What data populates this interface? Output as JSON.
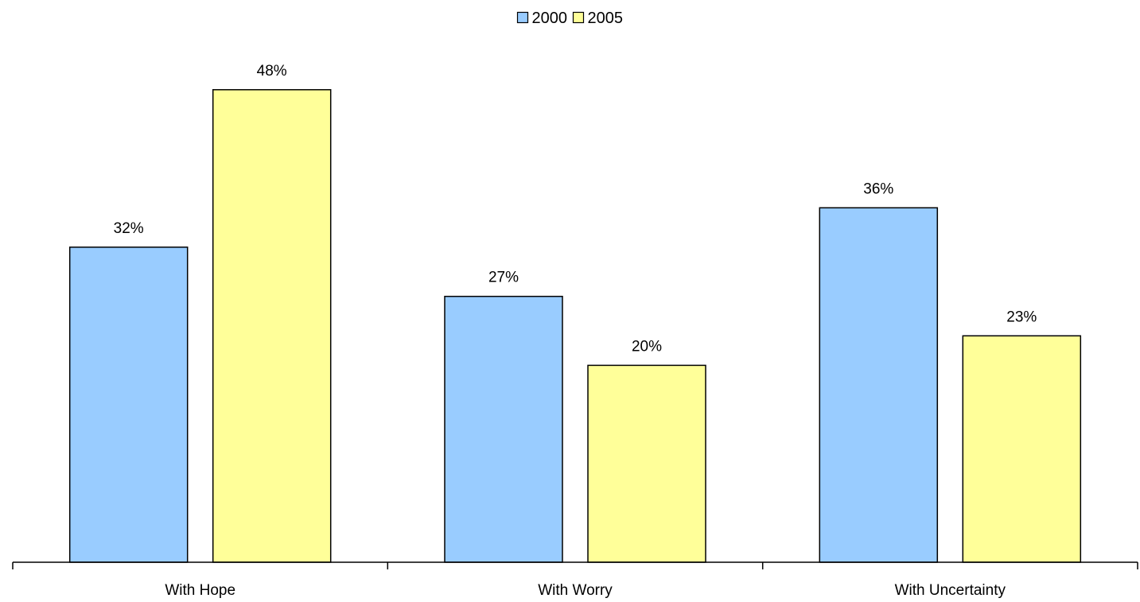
{
  "chart_data": {
    "type": "bar",
    "title": "",
    "xlabel": "",
    "ylabel": "",
    "categories": [
      "With Hope",
      "With Worry",
      "With Uncertainty"
    ],
    "series": [
      {
        "name": "2000",
        "values": [
          32,
          27,
          36
        ],
        "labels": [
          "32%",
          "27%",
          "36%"
        ],
        "color": "#99CCFF"
      },
      {
        "name": "2005",
        "values": [
          48,
          20,
          23
        ],
        "labels": [
          "48%",
          "20%",
          "23%"
        ],
        "color": "#FFFF99"
      }
    ],
    "ylim": [
      0,
      55
    ],
    "unit": "%",
    "legend": {
      "position": "top-center",
      "entries": [
        "2000",
        "2005"
      ]
    },
    "grid": false,
    "show_y_axis": false,
    "bar_outline_color": "#000000"
  }
}
